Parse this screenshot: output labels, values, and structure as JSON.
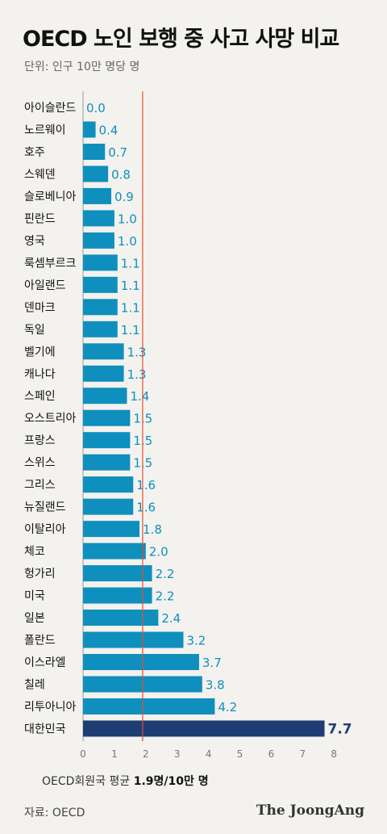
{
  "title": "OECD 노인 보행 중 사고 사망 비교",
  "unit": "단위: 인구 10만 명당 명",
  "avg_note": {
    "prefix": "OECD회원국 평균 ",
    "value": "1.9명/10만 명"
  },
  "source": "자료: OECD",
  "brand": "The JoongAng",
  "colors": {
    "bar": "#0f8fbd",
    "highlight_bar": "#1d3d73",
    "value_label": "#0f8fbd",
    "highlight_label": "#1d3d73",
    "average_line": "#e0502f",
    "axis": "#999999"
  },
  "chart_data": {
    "type": "bar",
    "orientation": "horizontal",
    "categories": [
      "아이슬란드",
      "노르웨이",
      "호주",
      "스웨덴",
      "슬로베니아",
      "핀란드",
      "영국",
      "룩셈부르크",
      "아일랜드",
      "덴마크",
      "독일",
      "벨기에",
      "캐나다",
      "스페인",
      "오스트리아",
      "프랑스",
      "스위스",
      "그리스",
      "뉴질랜드",
      "이탈리아",
      "체코",
      "헝가리",
      "미국",
      "일본",
      "폴란드",
      "이스라엘",
      "칠레",
      "리투아니아",
      "대한민국"
    ],
    "values": [
      0.0,
      0.4,
      0.7,
      0.8,
      0.9,
      1.0,
      1.0,
      1.1,
      1.1,
      1.1,
      1.1,
      1.3,
      1.3,
      1.4,
      1.5,
      1.5,
      1.5,
      1.6,
      1.6,
      1.8,
      2.0,
      2.2,
      2.2,
      2.4,
      3.2,
      3.7,
      3.8,
      4.2,
      7.7
    ],
    "value_labels": [
      "0.0",
      "0.4",
      "0.7",
      "0.8",
      "0.9",
      "1.0",
      "1.0",
      "1.1",
      "1.1",
      "1.1",
      "1.1",
      "1.3",
      "1.3",
      "1.4",
      "1.5",
      "1.5",
      "1.5",
      "1.6",
      "1.6",
      "1.8",
      "2.0",
      "2.2",
      "2.2",
      "2.4",
      "3.2",
      "3.7",
      "3.8",
      "4.2",
      "7.7"
    ],
    "highlight": "대한민국",
    "average": 1.9,
    "xlim": [
      0,
      8
    ],
    "x_ticks": [
      "0",
      "1",
      "2",
      "3",
      "4",
      "5",
      "6",
      "7",
      "8"
    ],
    "grid": false
  }
}
